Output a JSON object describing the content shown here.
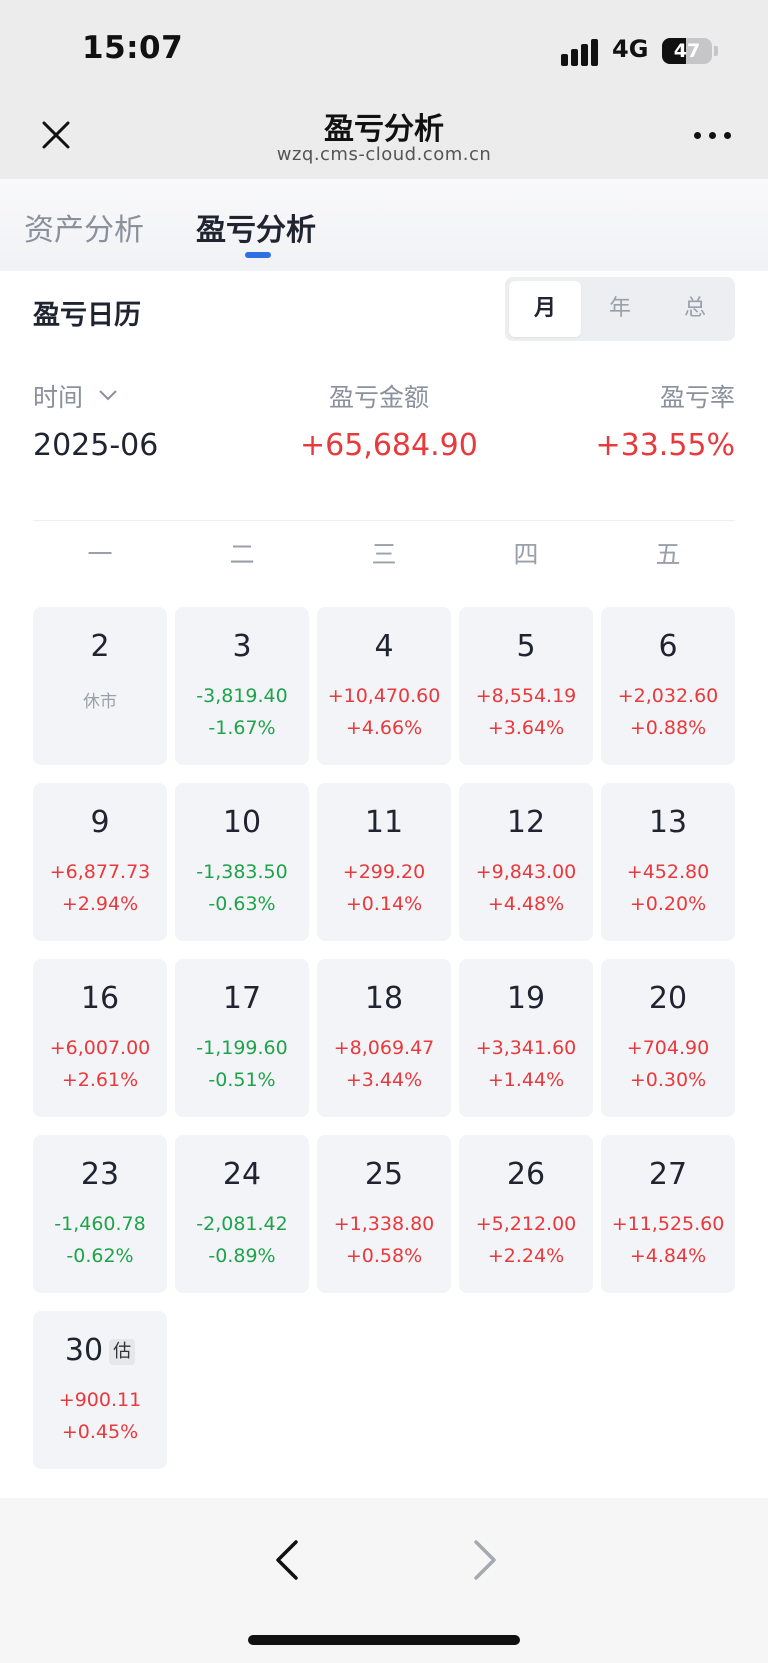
{
  "status_bar": {
    "time": "15:07",
    "network": "4G",
    "battery": "47",
    "battery_level": 0.47
  },
  "nav": {
    "title": "盈亏分析",
    "subtitle": "wzq.cms-cloud.com.cn"
  },
  "tabs": [
    {
      "label": "资产分析",
      "active": false
    },
    {
      "label": "盈亏分析",
      "active": true
    }
  ],
  "calendar": {
    "title": "盈亏日历",
    "period_options": [
      "月",
      "年",
      "总"
    ],
    "selected_period": "月"
  },
  "summary": {
    "time_label": "时间",
    "amount_label": "盈亏金额",
    "rate_label": "盈亏率",
    "date": "2025-06",
    "amount": "+65,684.90",
    "rate": "+33.55%"
  },
  "weekdays": [
    "一",
    "二",
    "三",
    "四",
    "五"
  ],
  "days": [
    {
      "day": "2",
      "closed_label": "休市"
    },
    {
      "day": "3",
      "amount": "-3,819.40",
      "rate": "-1.67%",
      "trend": "down"
    },
    {
      "day": "4",
      "amount": "+10,470.60",
      "rate": "+4.66%",
      "trend": "up"
    },
    {
      "day": "5",
      "amount": "+8,554.19",
      "rate": "+3.64%",
      "trend": "up"
    },
    {
      "day": "6",
      "amount": "+2,032.60",
      "rate": "+0.88%",
      "trend": "up"
    },
    {
      "day": "9",
      "amount": "+6,877.73",
      "rate": "+2.94%",
      "trend": "up"
    },
    {
      "day": "10",
      "amount": "-1,383.50",
      "rate": "-0.63%",
      "trend": "down"
    },
    {
      "day": "11",
      "amount": "+299.20",
      "rate": "+0.14%",
      "trend": "up"
    },
    {
      "day": "12",
      "amount": "+9,843.00",
      "rate": "+4.48%",
      "trend": "up"
    },
    {
      "day": "13",
      "amount": "+452.80",
      "rate": "+0.20%",
      "trend": "up"
    },
    {
      "day": "16",
      "amount": "+6,007.00",
      "rate": "+2.61%",
      "trend": "up"
    },
    {
      "day": "17",
      "amount": "-1,199.60",
      "rate": "-0.51%",
      "trend": "down"
    },
    {
      "day": "18",
      "amount": "+8,069.47",
      "rate": "+3.44%",
      "trend": "up"
    },
    {
      "day": "19",
      "amount": "+3,341.60",
      "rate": "+1.44%",
      "trend": "up"
    },
    {
      "day": "20",
      "amount": "+704.90",
      "rate": "+0.30%",
      "trend": "up"
    },
    {
      "day": "23",
      "amount": "-1,460.78",
      "rate": "-0.62%",
      "trend": "down"
    },
    {
      "day": "24",
      "amount": "-2,081.42",
      "rate": "-0.89%",
      "trend": "down"
    },
    {
      "day": "25",
      "amount": "+1,338.80",
      "rate": "+0.58%",
      "trend": "up"
    },
    {
      "day": "26",
      "amount": "+5,212.00",
      "rate": "+2.24%",
      "trend": "up"
    },
    {
      "day": "27",
      "amount": "+11,525.60",
      "rate": "+4.84%",
      "trend": "up"
    },
    {
      "day": "30",
      "amount": "+900.11",
      "rate": "+0.45%",
      "trend": "up",
      "badge": "估"
    }
  ],
  "colors": {
    "up": "#e8393c",
    "down": "#1fa34a",
    "accent": "#2f6fe4"
  },
  "icons": {
    "close": "close-icon",
    "more": "more-icon",
    "chevron": "chevron-down-icon",
    "back": "back-arrow-icon",
    "forward": "forward-arrow-icon"
  }
}
